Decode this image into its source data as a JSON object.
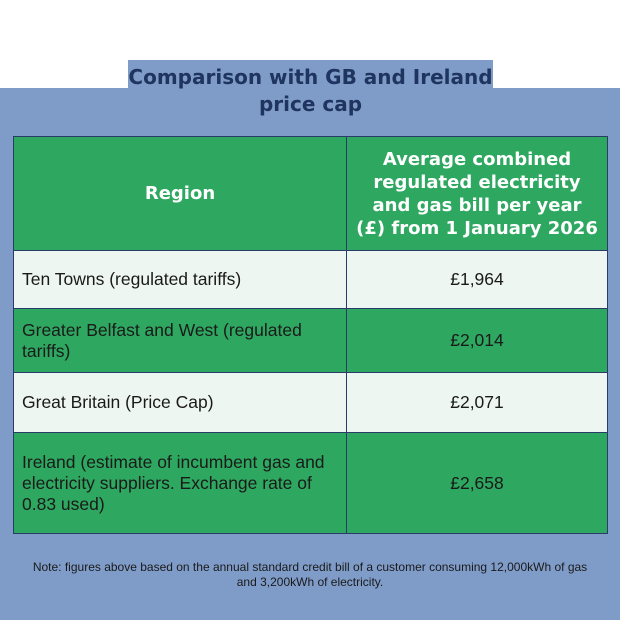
{
  "title": "Comparison with GB and Ireland price cap",
  "table": {
    "headers": {
      "region": "Region",
      "value": "Average combined regulated electricity and gas bill per year (£) from 1 January 2026"
    },
    "rows": [
      {
        "region": "Ten Towns (regulated tariffs)",
        "value": "£1,964"
      },
      {
        "region": "Greater Belfast and West (regulated tariffs)",
        "value": "£2,014"
      },
      {
        "region": "Great Britain (Price Cap)",
        "value": "£2,071"
      },
      {
        "region": "Ireland (estimate of incumbent gas and electricity suppliers. Exchange rate of 0.83 used)",
        "value": "£2,658"
      }
    ]
  },
  "note": "Note: figures above based on the annual standard credit bill of a customer consuming 12,000kWh of gas and 3,200kWh of electricity.",
  "colors": {
    "background_panel": "#7f9cc9",
    "title_text": "#1f3560",
    "header_green": "#2ea860",
    "row_green": "#2ea860",
    "row_light": "#eef6f1",
    "border": "#2a3a6a"
  }
}
